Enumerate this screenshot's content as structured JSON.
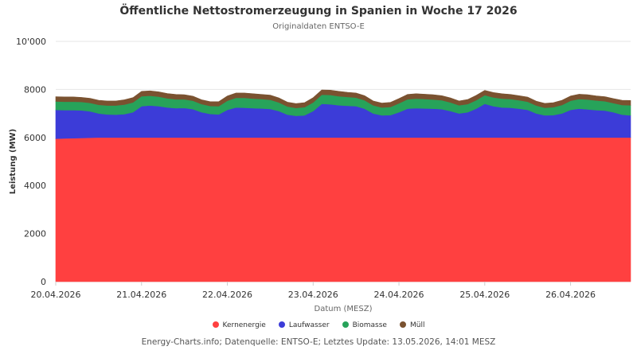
{
  "chart_data": {
    "type": "area",
    "stacked": true,
    "title": "Öffentliche Nettostromerzeugung in Spanien in Woche 17 2026",
    "subtitle": "Originaldaten ENTSO-E",
    "xlabel": "Datum (MESZ)",
    "ylabel": "Leistung (MW)",
    "ylim": [
      0,
      10000
    ],
    "yticks": [
      "0",
      "2000",
      "4000",
      "6000",
      "8000",
      "10'000"
    ],
    "ytick_values": [
      0,
      2000,
      4000,
      6000,
      8000,
      10000
    ],
    "xlim": [
      0,
      6.7
    ],
    "xticks": [
      "20.04.2026",
      "21.04.2026",
      "22.04.2026",
      "23.04.2026",
      "24.04.2026",
      "25.04.2026",
      "26.04.2026"
    ],
    "xtick_values": [
      0,
      1,
      2,
      3,
      4,
      5,
      6
    ],
    "grid": true,
    "legend_position": "bottom",
    "x": [
      0,
      0.1,
      0.2,
      0.3,
      0.4,
      0.5,
      0.6,
      0.7,
      0.8,
      0.9,
      1.0,
      1.1,
      1.2,
      1.3,
      1.4,
      1.5,
      1.6,
      1.7,
      1.8,
      1.9,
      2.0,
      2.1,
      2.2,
      2.3,
      2.4,
      2.5,
      2.6,
      2.7,
      2.8,
      2.9,
      3.0,
      3.1,
      3.2,
      3.3,
      3.4,
      3.5,
      3.6,
      3.7,
      3.8,
      3.9,
      4.0,
      4.1,
      4.2,
      4.3,
      4.4,
      4.5,
      4.6,
      4.7,
      4.8,
      4.9,
      5.0,
      5.1,
      5.2,
      5.3,
      5.4,
      5.5,
      5.6,
      5.7,
      5.8,
      5.9,
      6.0,
      6.1,
      6.2,
      6.3,
      6.4,
      6.5,
      6.6,
      6.7
    ],
    "series": [
      {
        "name": "Kernenergie",
        "color": "#ff4040",
        "values": [
          5950,
          5960,
          5970,
          5980,
          5990,
          6000,
          6000,
          6000,
          6000,
          6000,
          6000,
          6000,
          6000,
          6000,
          6000,
          6000,
          6000,
          6000,
          6000,
          6000,
          6000,
          6000,
          6000,
          6000,
          6000,
          6000,
          6000,
          6000,
          6000,
          6000,
          6000,
          6000,
          6000,
          6000,
          6000,
          6000,
          6000,
          6000,
          6000,
          6000,
          6000,
          6000,
          6000,
          6000,
          6000,
          6000,
          6000,
          6000,
          6000,
          6000,
          6000,
          6000,
          6000,
          6000,
          6000,
          6000,
          6000,
          6000,
          6000,
          6000,
          6000,
          6000,
          6000,
          6000,
          6000,
          6000,
          6000,
          6000
        ]
      },
      {
        "name": "Laufwasser",
        "color": "#3c3cd8",
        "values": [
          1200,
          1180,
          1170,
          1150,
          1100,
          1000,
          960,
          950,
          970,
          1050,
          1300,
          1330,
          1300,
          1250,
          1220,
          1230,
          1180,
          1050,
          980,
          960,
          1150,
          1250,
          1240,
          1220,
          1210,
          1190,
          1100,
          950,
          900,
          920,
          1100,
          1400,
          1380,
          1340,
          1320,
          1300,
          1200,
          1000,
          920,
          930,
          1050,
          1200,
          1220,
          1210,
          1200,
          1180,
          1100,
          1000,
          1050,
          1200,
          1400,
          1300,
          1250,
          1240,
          1200,
          1150,
          1000,
          920,
          930,
          1000,
          1150,
          1200,
          1170,
          1140,
          1120,
          1050,
          950,
          920
        ]
      },
      {
        "name": "Biomasse",
        "color": "#27a35a",
        "values": [
          350,
          350,
          350,
          350,
          350,
          360,
          370,
          380,
          400,
          410,
          420,
          410,
          400,
          380,
          370,
          360,
          350,
          340,
          330,
          340,
          380,
          400,
          410,
          400,
          390,
          380,
          360,
          340,
          330,
          340,
          360,
          380,
          390,
          380,
          370,
          360,
          350,
          340,
          330,
          340,
          370,
          390,
          400,
          390,
          380,
          370,
          360,
          340,
          340,
          350,
          360,
          370,
          370,
          360,
          350,
          340,
          330,
          320,
          330,
          350,
          380,
          400,
          410,
          400,
          390,
          380,
          400,
          420
        ]
      },
      {
        "name": "Müll",
        "color": "#7a5230",
        "values": [
          200,
          200,
          200,
          190,
          190,
          190,
          190,
          190,
          200,
          200,
          200,
          200,
          200,
          200,
          200,
          190,
          190,
          180,
          180,
          190,
          200,
          200,
          200,
          200,
          190,
          190,
          190,
          180,
          180,
          190,
          200,
          200,
          200,
          200,
          190,
          190,
          190,
          180,
          180,
          190,
          200,
          200,
          200,
          200,
          200,
          190,
          190,
          180,
          190,
          200,
          200,
          200,
          200,
          190,
          190,
          190,
          180,
          180,
          190,
          200,
          200,
          200,
          200,
          190,
          190,
          190,
          200,
          200
        ]
      }
    ]
  },
  "credits": "Energy-Charts.info; Datenquelle: ENTSO-E; Letztes Update: 13.05.2026, 14:01 MESZ"
}
